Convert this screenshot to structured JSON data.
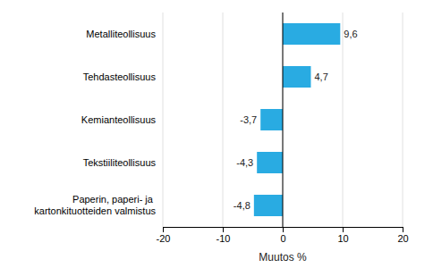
{
  "chart_data": {
    "type": "bar",
    "orientation": "horizontal",
    "categories": [
      "Paperin, paperi- ja kartonkituotteiden valmistus",
      "Tekstiiliteollisuus",
      "Kemianteollisuus",
      "Tehdasteollisuus",
      "Metalliteollisuus"
    ],
    "values": [
      -4.8,
      -4.3,
      -3.7,
      4.7,
      9.6
    ],
    "value_labels": [
      "-4,8",
      "-4,3",
      "-3,7",
      "4,7",
      "9,6"
    ],
    "data_labels": true,
    "color": "#29abe2",
    "xlabel": "Muutos %",
    "xlim": [
      -20,
      20
    ],
    "xticks": [
      -20,
      -10,
      0,
      10,
      20
    ],
    "grid": true
  }
}
